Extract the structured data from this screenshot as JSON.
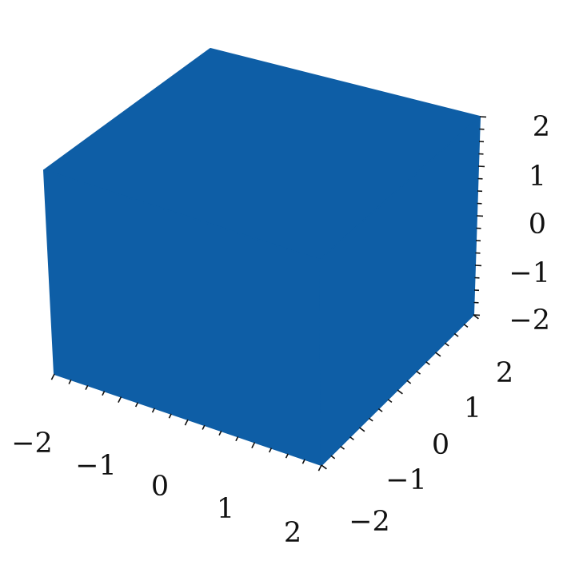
{
  "chart_data": {
    "type": "scatter",
    "projection": "3d",
    "title": "",
    "xlabel": "",
    "ylabel": "",
    "zlabel": "",
    "grid": false,
    "legend": "none",
    "xlim": [
      -2,
      2
    ],
    "ylim": [
      -2,
      2
    ],
    "zlim": [
      -2,
      2
    ],
    "x_ticks": [
      "−2",
      "−1",
      "0",
      "1",
      "2"
    ],
    "y_ticks": [
      "−2",
      "−1",
      "0",
      "1",
      "2"
    ],
    "z_ticks": [
      "−2",
      "−1",
      "0",
      "1",
      "2"
    ],
    "series": [
      {
        "description": "dense cloud of points filling the cube",
        "x_range": [
          -2,
          2
        ],
        "y_range": [
          -2,
          2
        ],
        "z_range": [
          -2,
          2
        ],
        "color": "#0e5ea6"
      }
    ]
  }
}
